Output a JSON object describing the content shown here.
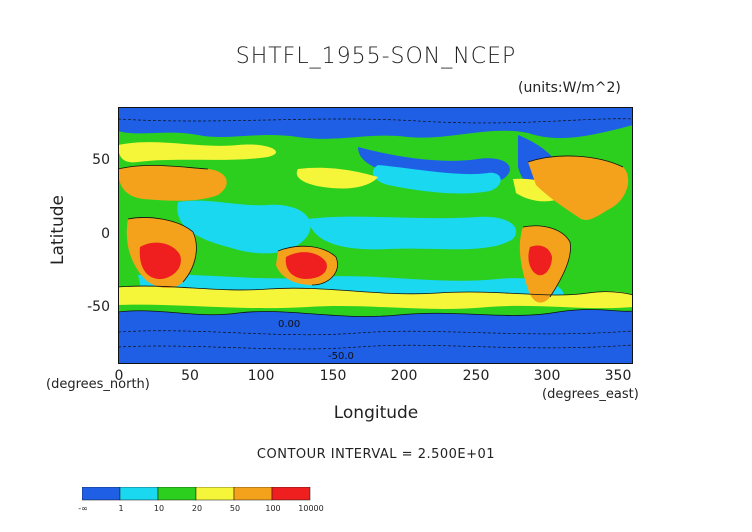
{
  "title": "SHTFL_1955-SON_NCEP",
  "units": "(units:W/m^2)",
  "axes": {
    "ylabel": "Latitude",
    "xlabel": "Longitude",
    "y_ticks": [
      "50",
      "0",
      "-50"
    ],
    "x_ticks": [
      "0",
      "50",
      "100",
      "150",
      "200",
      "250",
      "300",
      "350"
    ],
    "lat_unit": "(degrees_north)",
    "lon_unit": "(degrees_east)"
  },
  "contour_labels": [
    "0.00",
    "-50.0"
  ],
  "contour_interval": "CONTOUR INTERVAL = 2.500E+01",
  "colorbar": {
    "labels": [
      "-∞",
      "1",
      "10",
      "20",
      "50",
      "100",
      "10000"
    ],
    "colors": [
      "#1e5fe6",
      "#19d8f0",
      "#2ccf1e",
      "#f5f53a",
      "#f4a21b",
      "#ef1f1f"
    ]
  },
  "palette": {
    "ocean_low": "#1e5fe6",
    "cyan": "#19d8f0",
    "green": "#2ccf1e",
    "yellow": "#f5f53a",
    "orange": "#f4a21b",
    "red": "#ef1f1f"
  }
}
